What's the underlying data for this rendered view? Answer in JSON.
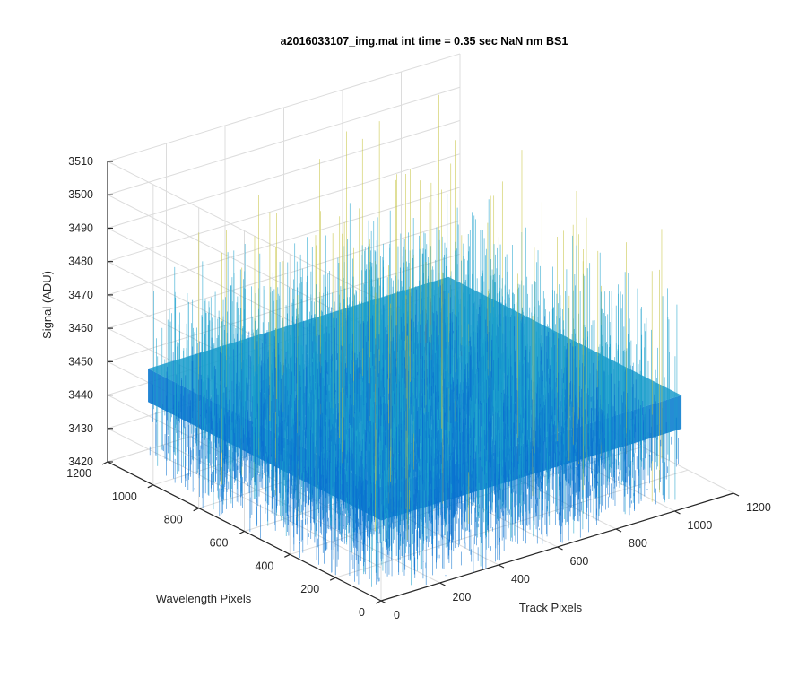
{
  "chart_data": {
    "type": "surface",
    "title": "a2016033107_img.mat int time = 0.35 sec  NaN nm BS1",
    "xlabel": "Track Pixels",
    "ylabel": "Wavelength Pixels",
    "zlabel": "Signal (ADU)",
    "xlim": [
      0,
      1200
    ],
    "ylim": [
      0,
      1200
    ],
    "zlim": [
      3420,
      3510
    ],
    "xticks": [
      "0",
      "200",
      "400",
      "600",
      "800",
      "1000",
      "1200"
    ],
    "yticks": [
      "0",
      "200",
      "400",
      "600",
      "800",
      "1000",
      "1200"
    ],
    "zticks": [
      "3420",
      "3430",
      "3440",
      "3450",
      "3460",
      "3470",
      "3480",
      "3490",
      "3500",
      "3510"
    ],
    "data_extent": {
      "x": [
        1,
        1024
      ],
      "y": [
        1,
        1024
      ]
    },
    "signal_mean": 3450,
    "signal_spread": [
      3425,
      3500
    ],
    "grid": true,
    "colormap": "parula",
    "colors": {
      "low": "#0a72d0",
      "mid": "#1aa0cc",
      "high": "#c5c23a"
    }
  }
}
